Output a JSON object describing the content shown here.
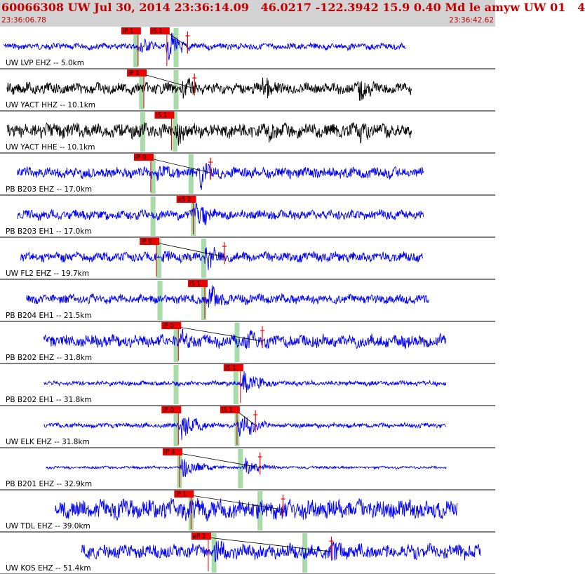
{
  "header": {
    "title": "60066308 UW Jul 30, 2014 23:36:14.09   46.0217 -122.3942 15.9 0.40 Md le amyw UW 01   4",
    "time_start": "23:36:06.78",
    "time_end": "23:36:42.62"
  },
  "chart_data": {
    "type": "line",
    "title": "",
    "xlabel": "",
    "ylabel": "",
    "x_range": [
      "23:36:06.78",
      "23:36:42.62"
    ],
    "x_range_seconds": [
      0,
      35.84
    ],
    "grid": false,
    "colors": {
      "blue_trace": "#0000ee",
      "black_trace": "#000000",
      "pick_box": "#ee0000",
      "pick_window": "#a8dba8",
      "header_bg": "#d3d3d3",
      "header_text": "#c00000"
    },
    "series": [
      {
        "name": "UW LVP EHZ -- 5.0km",
        "color": "#0000ee",
        "start": 0.0,
        "end": 35.0,
        "amp": 0.2,
        "picks": [
          {
            "label": "iP 1",
            "t": 11.7,
            "phase": "P"
          },
          {
            "label": "iS 1",
            "t": 14.2,
            "phase": "S"
          }
        ],
        "events": [
          {
            "t": 11.8,
            "amp": 0.7
          },
          {
            "t": 14.3,
            "amp": 1.0
          }
        ],
        "windows": [
          11.5,
          15.0
        ],
        "marker": 16.0
      },
      {
        "name": "UW YACT HHZ -- 10.1km",
        "color": "#000000",
        "start": 0.3,
        "end": 35.5,
        "amp": 0.35,
        "picks": [
          {
            "label": "iP 1",
            "t": 12.2,
            "phase": "P"
          }
        ],
        "events": [
          {
            "t": 15.5,
            "amp": 0.9
          },
          {
            "t": 22.5,
            "amp": 1.0
          },
          {
            "t": 30.8,
            "amp": 0.95
          }
        ],
        "windows": [
          12.0,
          15.0
        ],
        "marker": 16.6
      },
      {
        "name": "UW YACT HHE -- 10.1km",
        "color": "#000000",
        "start": 0.3,
        "end": 35.5,
        "amp": 0.45,
        "picks": [
          {
            "label": "iS 1",
            "t": 14.6,
            "phase": "S"
          }
        ],
        "events": [
          {
            "t": 15.0,
            "amp": 1.0
          },
          {
            "t": 22.8,
            "amp": 0.95
          },
          {
            "t": 31.0,
            "amp": 1.0
          }
        ],
        "windows": [
          12.1,
          14.9
        ],
        "marker": null
      },
      {
        "name": "PB B203 EHZ -- 17.0km",
        "color": "#0000ee",
        "start": 1.2,
        "end": 36.5,
        "amp": 0.35,
        "picks": [
          {
            "label": "iP 0",
            "t": 12.8,
            "phase": "P"
          }
        ],
        "events": [
          {
            "t": 13.2,
            "amp": 0.8
          },
          {
            "t": 17.0,
            "amp": 1.0
          }
        ],
        "windows": [
          13.0,
          16.3
        ],
        "marker": 18.0
      },
      {
        "name": "PB B203 EH1 -- 17.0km",
        "color": "#0000ee",
        "start": 1.2,
        "end": 36.5,
        "amp": 0.3,
        "picks": [
          {
            "label": "eS 2",
            "t": 16.5,
            "phase": "S"
          }
        ],
        "events": [
          {
            "t": 16.7,
            "amp": 1.0
          }
        ],
        "windows": [
          13.0,
          16.5
        ],
        "marker": null
      },
      {
        "name": "UW FL2 EHZ -- 19.7km",
        "color": "#0000ee",
        "start": 1.5,
        "end": 36.5,
        "amp": 0.3,
        "picks": [
          {
            "label": "iP 0",
            "t": 13.3,
            "phase": "P"
          }
        ],
        "events": [
          {
            "t": 13.6,
            "amp": 0.7
          },
          {
            "t": 17.5,
            "amp": 1.0
          }
        ],
        "windows": [
          13.5,
          17.4
        ],
        "marker": 19.2
      },
      {
        "name": "PB B204 EH1 -- 21.5km",
        "color": "#0000ee",
        "start": 2.0,
        "end": 37.0,
        "amp": 0.3,
        "picks": [
          {
            "label": "iS 1",
            "t": 17.5,
            "phase": "S"
          }
        ],
        "events": [
          {
            "t": 17.8,
            "amp": 1.0
          }
        ],
        "windows": [
          13.6,
          17.4
        ],
        "marker": null
      },
      {
        "name": "PB B202 EHZ -- 31.8km",
        "color": "#0000ee",
        "start": 3.5,
        "end": 38.5,
        "amp": 0.4,
        "picks": [
          {
            "label": "iP 0",
            "t": 15.2,
            "phase": "P"
          }
        ],
        "events": [
          {
            "t": 15.4,
            "amp": 0.8
          },
          {
            "t": 21.0,
            "amp": 0.9
          }
        ],
        "windows": [
          15.0,
          20.3
        ],
        "marker": 22.5
      },
      {
        "name": "PB B202 EH1 -- 31.8km",
        "color": "#0000ee",
        "start": 3.5,
        "end": 38.5,
        "amp": 0.15,
        "picks": [
          {
            "label": "iS 1",
            "t": 20.6,
            "phase": "S"
          }
        ],
        "events": [
          {
            "t": 20.8,
            "amp": 1.0
          }
        ],
        "windows": [
          15.0,
          20.2
        ],
        "marker": null
      },
      {
        "name": "UW ELK EHZ -- 31.8km",
        "color": "#0000ee",
        "start": 3.5,
        "end": 38.5,
        "amp": 0.15,
        "picks": [
          {
            "label": "iP 0",
            "t": 15.2,
            "phase": "P"
          },
          {
            "label": "iS 1",
            "t": 20.3,
            "phase": "S"
          }
        ],
        "events": [
          {
            "t": 15.4,
            "amp": 1.0
          },
          {
            "t": 20.4,
            "amp": 1.0
          }
        ],
        "windows": [
          15.0,
          20.3
        ],
        "marker": 21.9
      },
      {
        "name": "PB B201 EHZ -- 32.9km",
        "color": "#0000ee",
        "start": 3.7,
        "end": 38.5,
        "amp": 0.08,
        "picks": [
          {
            "label": "iP 4",
            "t": 15.3,
            "phase": "P"
          }
        ],
        "events": [
          {
            "t": 15.5,
            "amp": 0.9
          },
          {
            "t": 21.0,
            "amp": 0.6
          }
        ],
        "windows": [
          15.3,
          20.6
        ],
        "marker": 22.3
      },
      {
        "name": "UW TDL EHZ -- 39.0km",
        "color": "#0000ee",
        "start": 4.5,
        "end": 39.5,
        "amp": 0.6,
        "picks": [
          {
            "label": "iP 1",
            "t": 16.3,
            "phase": "P"
          }
        ],
        "events": [
          {
            "t": 16.5,
            "amp": 1.0
          },
          {
            "t": 24.0,
            "amp": 0.9
          }
        ],
        "windows": [
          16.3,
          22.3
        ],
        "marker": 24.3
      },
      {
        "name": "UW KOS EHZ -- 51.4km",
        "color": "#0000ee",
        "start": 6.8,
        "end": 41.5,
        "amp": 0.45,
        "picks": [
          {
            "label": "eP 2",
            "t": 17.8,
            "phase": "P"
          }
        ],
        "events": [
          {
            "t": 18.3,
            "amp": 1.0
          },
          {
            "t": 28.5,
            "amp": 0.9
          }
        ],
        "windows": [
          18.3,
          26.2
        ],
        "marker": 28.5
      }
    ]
  }
}
